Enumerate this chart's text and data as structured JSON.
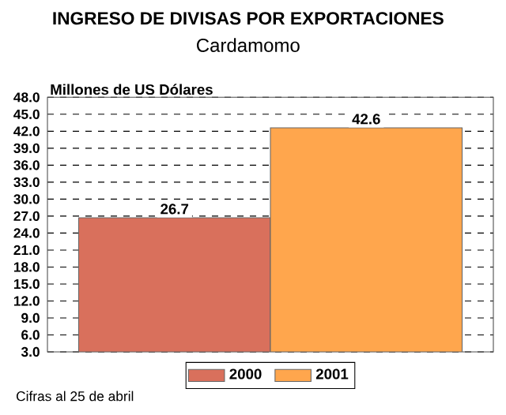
{
  "chart_data": {
    "type": "bar",
    "title": "INGRESO DE DIVISAS POR EXPORTACIONES",
    "subtitle": "Cardamomo",
    "ylabel": "Millones de US Dólares",
    "categories": [
      null
    ],
    "series": [
      {
        "name": "2000",
        "color": "#d9705c",
        "values": [
          26.7
        ]
      },
      {
        "name": "2001",
        "color": "#ffa64d",
        "values": [
          42.6
        ]
      }
    ],
    "ylim": [
      3,
      48
    ],
    "yticks": [
      {
        "value": 3,
        "label": "3.0"
      },
      {
        "value": 6,
        "label": "6.0"
      },
      {
        "value": 9,
        "label": "9.0"
      },
      {
        "value": 12,
        "label": "12.0"
      },
      {
        "value": 15,
        "label": "15.0"
      },
      {
        "value": 18,
        "label": "18.0"
      },
      {
        "value": 21,
        "label": "21.0"
      },
      {
        "value": 24,
        "label": "24.0"
      },
      {
        "value": 27,
        "label": "27.0"
      },
      {
        "value": 30,
        "label": "30.0"
      },
      {
        "value": 33,
        "label": "33.0"
      },
      {
        "value": 36,
        "label": "36.0"
      },
      {
        "value": 39,
        "label": "39.0"
      },
      {
        "value": 42,
        "label": "42.0"
      },
      {
        "value": 45,
        "label": "45.0"
      },
      {
        "value": 48,
        "label": "48.0"
      }
    ],
    "data_labels": true,
    "grid": "y",
    "legend": "bottom",
    "annotations": [
      "Cifras al 25 de abril"
    ]
  }
}
